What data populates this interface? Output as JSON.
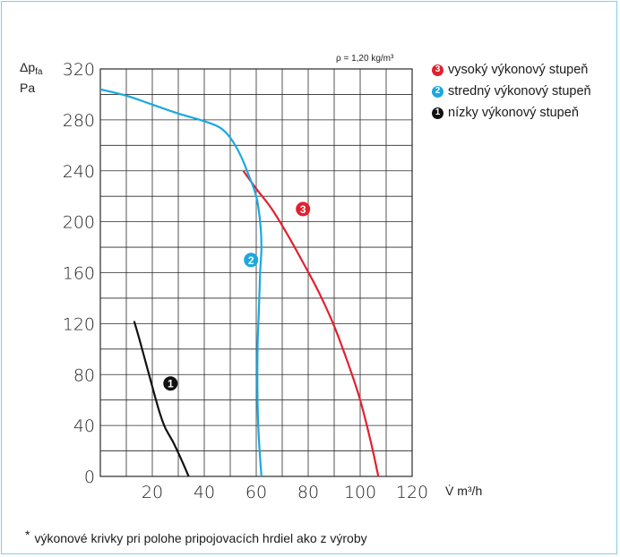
{
  "chart_data": {
    "type": "line",
    "xlabel": "V̇ m³/h",
    "ylabel": "Δpfa",
    "yunit": "Pa",
    "xlim": [
      0,
      120
    ],
    "ylim": [
      0,
      320
    ],
    "x_ticks": [
      0,
      20,
      40,
      60,
      80,
      100,
      120
    ],
    "x_tick_labels": [
      "",
      "20",
      "40",
      "60",
      "80",
      "100",
      "120"
    ],
    "y_ticks": [
      0,
      40,
      80,
      120,
      160,
      200,
      240,
      280,
      320
    ],
    "y_tick_labels": [
      "0",
      "40",
      "80",
      "120",
      "160",
      "200",
      "240",
      "280",
      "320"
    ],
    "grid": true,
    "density_note": "ρ = 1,20 kg/m³",
    "series": [
      {
        "name": "vysoký výkonový stupeň",
        "marker": "3",
        "color": "#e2202f",
        "x": [
          55,
          60,
          66,
          72,
          78,
          84,
          90,
          96,
          100,
          104,
          107
        ],
        "y": [
          240,
          226,
          210,
          190,
          168,
          145,
          118,
          85,
          60,
          28,
          0
        ]
      },
      {
        "name": "stredný výkonový stupeň",
        "marker": "2",
        "color": "#1aa8e0",
        "x": [
          0,
          10,
          20,
          30,
          40,
          46,
          50,
          54,
          57,
          60,
          61.5,
          62,
          61.5,
          61,
          60.5,
          60.5,
          61,
          62
        ],
        "y": [
          304,
          299,
          292,
          285,
          279,
          274,
          266,
          252,
          237,
          220,
          200,
          180,
          160,
          130,
          100,
          60,
          30,
          0
        ]
      },
      {
        "name": "nízky výkonový stupeň",
        "marker": "1",
        "color": "#111111",
        "x": [
          13,
          15,
          17,
          19,
          21,
          23,
          25,
          28,
          31,
          34
        ],
        "y": [
          122,
          108,
          93,
          78,
          63,
          49,
          38,
          27,
          14,
          0
        ]
      }
    ],
    "curve_marker_positions": [
      {
        "marker": "3",
        "x": 78,
        "y": 210
      },
      {
        "marker": "2",
        "x": 58,
        "y": 170
      },
      {
        "marker": "1",
        "x": 27,
        "y": 73
      }
    ]
  },
  "footnote": {
    "star": "*",
    "text": "výkonové krivky pri polohe pripojovacích hrdiel ako z výroby"
  }
}
